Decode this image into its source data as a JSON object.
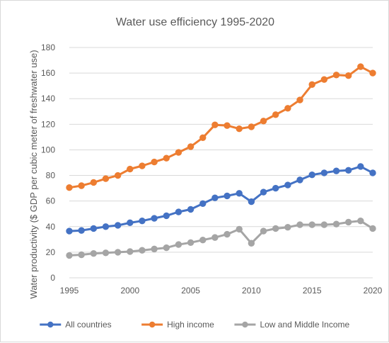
{
  "chart_data": {
    "type": "line",
    "title": "Water use efficiency 1995-2020",
    "xlabel": "",
    "ylabel": "Water productivity ($ GDP per cubic meter of freshwater use)",
    "x": [
      1995,
      1996,
      1997,
      1998,
      1999,
      2000,
      2001,
      2002,
      2003,
      2004,
      2005,
      2006,
      2007,
      2008,
      2009,
      2010,
      2011,
      2012,
      2013,
      2014,
      2015,
      2016,
      2017,
      2018,
      2019,
      2020
    ],
    "xticks": [
      1995,
      2000,
      2005,
      2010,
      2015,
      2020
    ],
    "xlim": [
      1995,
      2020
    ],
    "ylim": [
      0,
      180
    ],
    "yticks": [
      0,
      20,
      40,
      60,
      80,
      100,
      120,
      140,
      160,
      180
    ],
    "grid": "horizontal",
    "legend_position": "bottom",
    "series": [
      {
        "name": "All countries",
        "color": "#4472c4",
        "values": [
          36.5,
          37,
          38.5,
          40,
          41,
          43,
          44.5,
          46.5,
          48.5,
          51.5,
          53.5,
          58,
          62.5,
          64,
          66,
          59.5,
          67,
          70,
          72.5,
          76.5,
          80.5,
          82,
          83.5,
          84,
          87,
          82
        ]
      },
      {
        "name": "High income",
        "color": "#ed7d31",
        "values": [
          70.5,
          72,
          74.5,
          77.5,
          80,
          85,
          87.5,
          90.5,
          93.5,
          98,
          102.5,
          109.5,
          119.5,
          119,
          116.5,
          118,
          122.5,
          127.5,
          132.5,
          139,
          151,
          155,
          158.5,
          158,
          165,
          160
        ]
      },
      {
        "name": "Low and Middle Income",
        "color": "#a5a5a5",
        "values": [
          17.5,
          18,
          19,
          19.5,
          20,
          20.5,
          21.5,
          22.5,
          23.5,
          26,
          27.5,
          29.5,
          31.5,
          34,
          38,
          27,
          36.5,
          38.5,
          39.5,
          41.5,
          41.5,
          41.5,
          42,
          43.5,
          44.5,
          38.5
        ]
      }
    ]
  },
  "colors": {
    "gridline": "#d9d9d9",
    "text": "#595959"
  }
}
